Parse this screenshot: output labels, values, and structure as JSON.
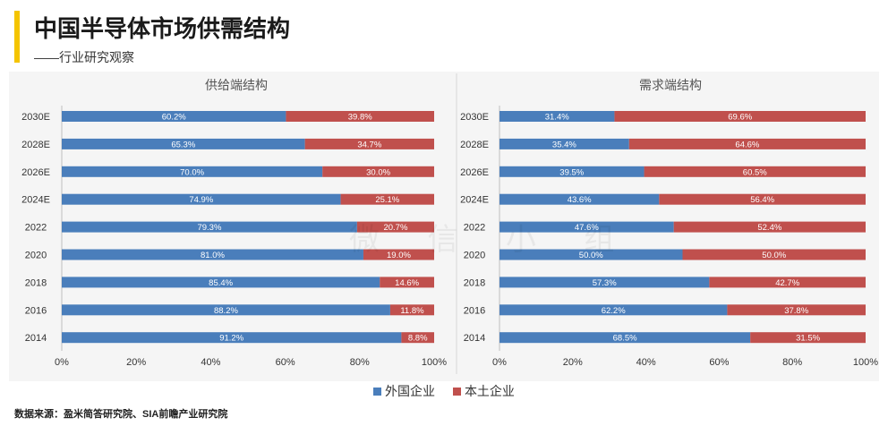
{
  "page": {
    "title": "中国半导体市场供需结构",
    "subtitle": "——行业研究观察",
    "source": "数据来源：盈米简答研究院、SIA前瞻产业研究院",
    "watermark": "微 信 小 组"
  },
  "legend": [
    {
      "label": "外国企业",
      "color": "#4a7ebb"
    },
    {
      "label": "本土企业",
      "color": "#c0504d"
    }
  ],
  "chart_data": [
    {
      "type": "bar",
      "orientation": "horizontal",
      "stacked": true,
      "title": "供给端结构",
      "categories": [
        "2030E",
        "2028E",
        "2026E",
        "2024E",
        "2022",
        "2020",
        "2018",
        "2016",
        "2014"
      ],
      "series": [
        {
          "name": "外国企业",
          "values": [
            60.2,
            65.3,
            70.0,
            74.9,
            79.3,
            81.0,
            85.4,
            88.2,
            91.2
          ],
          "labels": [
            "60.2%",
            "65.3%",
            "70.0%",
            "74.9%",
            "79.3%",
            "81.0%",
            "85.4%",
            "88.2%",
            "91.2%"
          ]
        },
        {
          "name": "本土企业",
          "values": [
            39.8,
            34.7,
            30.0,
            25.1,
            20.7,
            19.0,
            14.6,
            11.8,
            8.8
          ],
          "labels": [
            "39.8%",
            "34.7%",
            "30.0%",
            "25.1%",
            "20.7%",
            "19.0%",
            "14.6%",
            "11.8%",
            "8.8%"
          ]
        }
      ],
      "xlim": [
        0,
        100
      ],
      "xticks": [
        "0%",
        "20%",
        "40%",
        "60%",
        "80%",
        "100%"
      ]
    },
    {
      "type": "bar",
      "orientation": "horizontal",
      "stacked": true,
      "title": "需求端结构",
      "categories": [
        "2030E",
        "2028E",
        "2026E",
        "2024E",
        "2022",
        "2020",
        "2018",
        "2016",
        "2014"
      ],
      "series": [
        {
          "name": "外国企业",
          "values": [
            31.4,
            35.4,
            39.5,
            43.6,
            47.6,
            50.0,
            57.3,
            62.2,
            68.5
          ],
          "labels": [
            "31.4%",
            "35.4%",
            "39.5%",
            "43.6%",
            "47.6%",
            "50.0%",
            "57.3%",
            "62.2%",
            "68.5%"
          ]
        },
        {
          "name": "本土企业",
          "values": [
            69.6,
            64.6,
            60.5,
            56.4,
            52.4,
            50.0,
            42.7,
            37.8,
            31.5
          ],
          "labels": [
            "69.6%",
            "64.6%",
            "60.5%",
            "56.4%",
            "52.4%",
            "50.0%",
            "42.7%",
            "37.8%",
            "31.5%"
          ]
        }
      ],
      "xlim": [
        0,
        100
      ],
      "xticks": [
        "0%",
        "20%",
        "40%",
        "60%",
        "80%",
        "100%"
      ]
    }
  ]
}
